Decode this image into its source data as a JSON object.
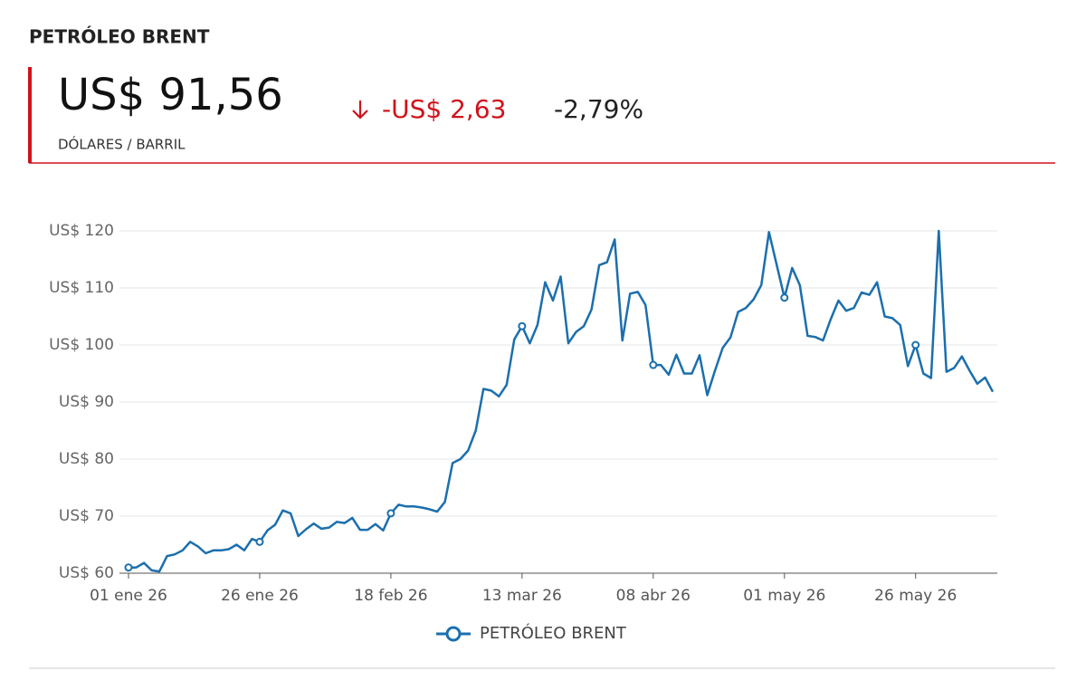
{
  "header": {
    "title": "PETRÓLEO BRENT",
    "price": "US$ 91,56",
    "change": "-US$ 2,63",
    "change_pct": "-2,79%",
    "unit": "DÓLARES / BARRIL"
  },
  "chart_data": {
    "type": "line",
    "categories": [
      "01 ene 26",
      null,
      null,
      null,
      null,
      null,
      null,
      null,
      null,
      null,
      null,
      null,
      null,
      null,
      null,
      null,
      null,
      "26 ene 26",
      null,
      null,
      null,
      null,
      null,
      null,
      null,
      null,
      null,
      null,
      null,
      null,
      null,
      null,
      null,
      null,
      "18 feb 26",
      null,
      null,
      null,
      null,
      null,
      null,
      null,
      null,
      null,
      null,
      null,
      null,
      null,
      null,
      null,
      null,
      "13 mar 26",
      null,
      null,
      null,
      null,
      null,
      null,
      null,
      null,
      null,
      null,
      null,
      null,
      null,
      null,
      null,
      null,
      "08 abr 26",
      null,
      null,
      null,
      null,
      null,
      null,
      null,
      null,
      null,
      null,
      null,
      null,
      null,
      null,
      null,
      null,
      "01 may 26",
      null,
      null,
      null,
      null,
      null,
      null,
      null,
      null,
      null,
      null,
      null,
      null,
      null,
      null,
      null,
      null,
      "26 may 26",
      null,
      null,
      null,
      null,
      null,
      null,
      null,
      null,
      null,
      null
    ],
    "series": [
      {
        "name": "PETRÓLEO BRENT",
        "color": "#1b6fad",
        "values": [
          61,
          61,
          61.8,
          60.5,
          60.3,
          63,
          63.3,
          64,
          65.5,
          64.7,
          63.5,
          64,
          64,
          64.2,
          65,
          64,
          66,
          65.5,
          67.5,
          68.5,
          71,
          70.5,
          66.5,
          67.7,
          68.7,
          67.8,
          68,
          69,
          68.8,
          69.7,
          67.6,
          67.6,
          68.6,
          67.5,
          70.5,
          72,
          71.7,
          71.7,
          71.5,
          71.2,
          70.8,
          72.5,
          79.3,
          80,
          81.5,
          85,
          92.3,
          92,
          91,
          93,
          101,
          103.3,
          100.3,
          103.5,
          111,
          107.8,
          112,
          100.3,
          102.3,
          103.3,
          106.2,
          114,
          114.5,
          118.5,
          100.8,
          109,
          109.3,
          107,
          96.5,
          96.5,
          94.8,
          98.3,
          95,
          95,
          98.2,
          91.2,
          95.5,
          99.5,
          101.3,
          105.8,
          106.5,
          108,
          110.5,
          119.8,
          114,
          108.3,
          113.5,
          110.5,
          101.6,
          101.4,
          100.8,
          104.5,
          107.8,
          106,
          106.5,
          109.2,
          108.8,
          111,
          105,
          104.7,
          103.5,
          96.3,
          100,
          95,
          94.2,
          120,
          95.3,
          96,
          98,
          95.5,
          93.2,
          94.3,
          91.8
        ]
      }
    ],
    "ylim": [
      60,
      120
    ],
    "yticks": [
      {
        "value": 60,
        "label": "US$ 60"
      },
      {
        "value": 70,
        "label": "US$ 70"
      },
      {
        "value": 80,
        "label": "US$ 80"
      },
      {
        "value": 90,
        "label": "US$ 90"
      },
      {
        "value": 100,
        "label": "US$ 100"
      },
      {
        "value": 110,
        "label": "US$ 110"
      },
      {
        "value": 120,
        "label": "US$ 120"
      }
    ],
    "grid": true,
    "legend": "bottom"
  }
}
